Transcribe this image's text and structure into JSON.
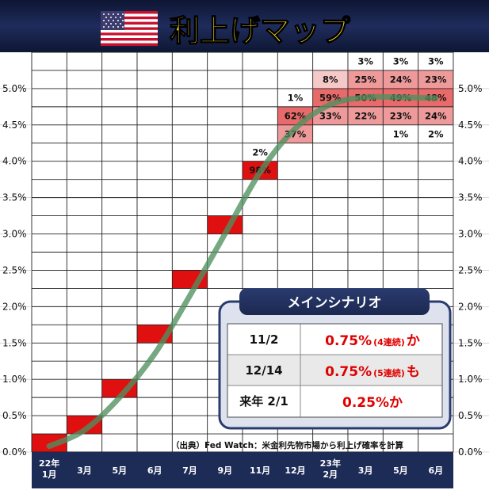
{
  "title": "利上げマップ",
  "flag_icon": "us-flag-icon",
  "colors": {
    "navy": "#1d2b57",
    "hike_red": "#e01010",
    "pink_light": "#f6c9c9",
    "pink_mid": "#ee9a9a",
    "pink_strong": "#e86a6a",
    "curve": "#4f8f5f",
    "scenario_red": "#e00000"
  },
  "source_note": "（出典）Fed Watch：米金利先物市場から利上げ確率を計算",
  "chart_data": {
    "type": "heatmap",
    "title": "利上げマップ",
    "x_categories": [
      "22年\n1月",
      "3月",
      "5月",
      "6月",
      "7月",
      "9月",
      "11月",
      "12月",
      "23年\n2月",
      "3月",
      "5月",
      "6月"
    ],
    "y_ticks": [
      "0.0%",
      "0.5%",
      "1.0%",
      "1.5%",
      "2.0%",
      "2.5%",
      "3.0%",
      "3.5%",
      "4.0%",
      "4.5%",
      "5.0%"
    ],
    "ylim": [
      0,
      5.5
    ],
    "cells": [
      {
        "col": 0,
        "rate": 0.125,
        "prob": null
      },
      {
        "col": 1,
        "rate": 0.375,
        "prob": null
      },
      {
        "col": 2,
        "rate": 0.875,
        "prob": null
      },
      {
        "col": 3,
        "rate": 1.625,
        "prob": null
      },
      {
        "col": 4,
        "rate": 2.375,
        "prob": null
      },
      {
        "col": 5,
        "rate": 3.125,
        "prob": null
      },
      {
        "col": 6,
        "rate": 3.875,
        "prob": 98
      },
      {
        "col": 6,
        "rate": 4.125,
        "prob": 2
      },
      {
        "col": 7,
        "rate": 4.375,
        "prob": 37
      },
      {
        "col": 7,
        "rate": 4.625,
        "prob": 62
      },
      {
        "col": 7,
        "rate": 4.875,
        "prob": 1
      },
      {
        "col": 8,
        "rate": 4.625,
        "prob": 33
      },
      {
        "col": 8,
        "rate": 4.875,
        "prob": 59
      },
      {
        "col": 8,
        "rate": 5.125,
        "prob": 8
      },
      {
        "col": 9,
        "rate": 4.625,
        "prob": 22
      },
      {
        "col": 9,
        "rate": 4.875,
        "prob": 50
      },
      {
        "col": 9,
        "rate": 5.125,
        "prob": 25
      },
      {
        "col": 9,
        "rate": 5.375,
        "prob": 3
      },
      {
        "col": 10,
        "rate": 4.375,
        "prob": 1
      },
      {
        "col": 10,
        "rate": 4.625,
        "prob": 23
      },
      {
        "col": 10,
        "rate": 4.875,
        "prob": 49
      },
      {
        "col": 10,
        "rate": 5.125,
        "prob": 24
      },
      {
        "col": 10,
        "rate": 5.375,
        "prob": 3
      },
      {
        "col": 11,
        "rate": 4.375,
        "prob": 2
      },
      {
        "col": 11,
        "rate": 4.625,
        "prob": 24
      },
      {
        "col": 11,
        "rate": 4.875,
        "prob": 48
      },
      {
        "col": 11,
        "rate": 5.125,
        "prob": 23
      },
      {
        "col": 11,
        "rate": 5.375,
        "prob": 3
      }
    ],
    "expected_path": [
      0.08,
      0.3,
      0.75,
      1.35,
      2.15,
      3.0,
      3.85,
      4.45,
      4.78,
      4.88,
      4.88,
      4.87
    ]
  },
  "scenario": {
    "heading": "メインシナリオ",
    "rows": [
      {
        "date": "11/2",
        "value": "0.75%",
        "note": "(4連続)",
        "suffix": "か"
      },
      {
        "date": "12/14",
        "value": "0.75%",
        "note": "(5連続)",
        "suffix": "も"
      },
      {
        "date": "来年 2/1",
        "value": "0.25%か",
        "note": "",
        "suffix": ""
      }
    ]
  }
}
